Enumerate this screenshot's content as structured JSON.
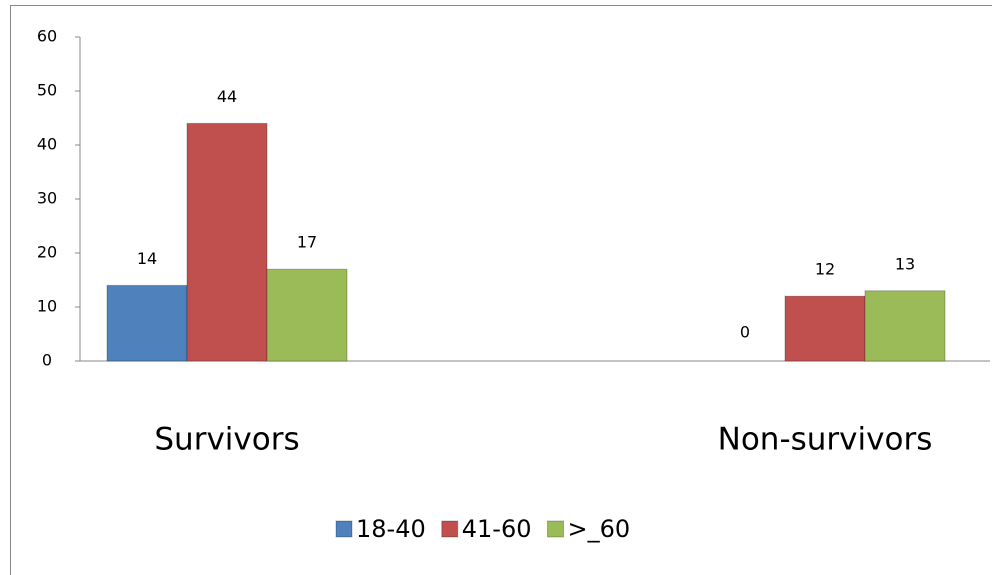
{
  "chart_data": {
    "type": "bar",
    "categories": [
      "Survivors",
      "Non-survivors"
    ],
    "series": [
      {
        "name": "18-40",
        "color": "#4f81bd",
        "values": [
          14,
          0
        ]
      },
      {
        "name": "41-60",
        "color": "#c0504d",
        "values": [
          44,
          12
        ]
      },
      {
        "name": ">_60",
        "color": "#9bbb59",
        "values": [
          17,
          13
        ]
      }
    ],
    "ylim": [
      0,
      60
    ],
    "yticks": [
      0,
      10,
      20,
      30,
      40,
      50,
      60
    ],
    "grid": false,
    "legend": "bottom"
  }
}
